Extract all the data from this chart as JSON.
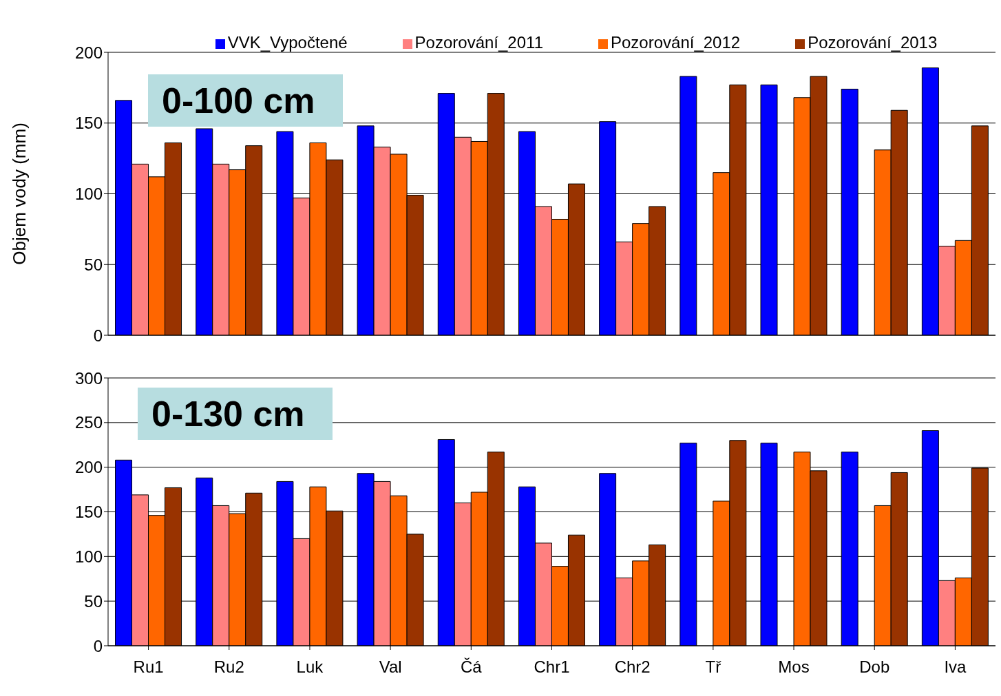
{
  "chart_data": [
    {
      "type": "bar",
      "ylabel": "Objem vody (mm)",
      "annotations": [
        "0-100 cm"
      ],
      "categories": [
        null,
        null,
        null,
        null,
        null,
        null,
        null,
        null,
        null,
        null,
        null
      ],
      "ylim": [
        0,
        200
      ],
      "yticks": [
        0,
        50,
        100,
        150,
        200
      ],
      "grid": "y",
      "legend": "top",
      "tick_labels": "y",
      "series": [
        {
          "name": "VVK_Vypočtené",
          "color": "#0000ff",
          "values": [
            166,
            146,
            144,
            148,
            171,
            144,
            151,
            183,
            177,
            174,
            189
          ]
        },
        {
          "name": "Pozorování_2011",
          "color": "#ff8080",
          "values": [
            121,
            121,
            97,
            133,
            140,
            91,
            66,
            null,
            null,
            null,
            63
          ]
        },
        {
          "name": "Pozorování_2012",
          "color": "#ff6600",
          "values": [
            112,
            117,
            136,
            128,
            137,
            82,
            79,
            115,
            168,
            131,
            67
          ]
        },
        {
          "name": "Pozorování_2013",
          "color": "#993300",
          "values": [
            136,
            134,
            124,
            99,
            171,
            107,
            91,
            177,
            183,
            159,
            148
          ]
        }
      ]
    },
    {
      "type": "bar",
      "annotations": [
        "0-130 cm"
      ],
      "categories": [
        "Ru1",
        "Ru2",
        "Luk",
        "Val",
        "Čá",
        "Chr1",
        "Chr2",
        "Tř",
        "Mos",
        "Dob",
        "Iva"
      ],
      "ylim": [
        0,
        300
      ],
      "yticks": [
        0,
        50,
        100,
        150,
        200,
        250,
        300
      ],
      "grid": "y",
      "series": [
        {
          "color": "#0000ff",
          "values": [
            208,
            188,
            184,
            193,
            231,
            178,
            193,
            227,
            227,
            217,
            241
          ]
        },
        {
          "color": "#ff8080",
          "values": [
            169,
            157,
            120,
            184,
            160,
            115,
            76,
            null,
            null,
            null,
            73
          ]
        },
        {
          "color": "#ff6600",
          "values": [
            146,
            148,
            178,
            168,
            172,
            89,
            95,
            162,
            217,
            157,
            76
          ]
        },
        {
          "color": "#993300",
          "values": [
            177,
            171,
            151,
            125,
            217,
            124,
            113,
            230,
            196,
            194,
            199
          ]
        }
      ]
    }
  ]
}
